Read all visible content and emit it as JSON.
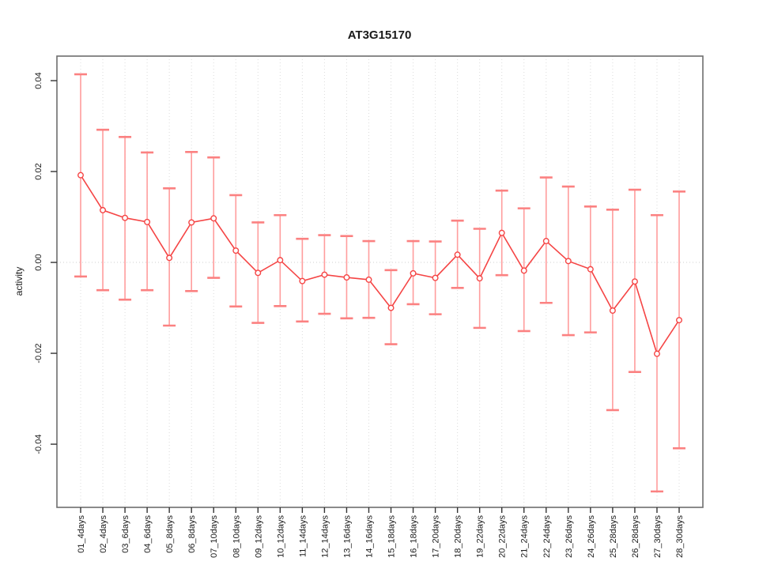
{
  "figure": {
    "title": "AT3G15170",
    "ylabel": "activity"
  },
  "colors": {
    "line": "#f54545",
    "point_stroke": "#f54545",
    "point_fill": "#ffffff",
    "error_bar": "#ff9d9d",
    "error_cap": "#fb8181",
    "grid": "#dcdcdc",
    "zero_line": "#cfcfcf",
    "box": "#6e6e6e",
    "tick": "#333333"
  },
  "chart_data": {
    "type": "line",
    "subtype": "means-with-error-bars",
    "title": "AT3G15170",
    "xlabel": "",
    "ylabel": "activity",
    "legend": "none",
    "grid": "vertical dotted line at every category; horizontal dotted line at y=0 only",
    "marker": "open-circle",
    "categories": [
      "01_4days",
      "02_4days",
      "03_6days",
      "04_6days",
      "05_8days",
      "06_8days",
      "07_10days",
      "08_10days",
      "09_12days",
      "10_12days",
      "11_14days",
      "12_14days",
      "13_16days",
      "14_16days",
      "15_18days",
      "16_18days",
      "17_20days",
      "18_20days",
      "19_22days",
      "20_22days",
      "21_24days",
      "22_24days",
      "23_26days",
      "24_26days",
      "25_28days",
      "26_28days",
      "27_30days",
      "28_30days"
    ],
    "series": [
      {
        "name": "activity",
        "values": [
          0.0192,
          0.0115,
          0.0098,
          0.0089,
          0.001,
          0.0088,
          0.0097,
          0.0026,
          -0.0023,
          0.0005,
          -0.0041,
          -0.0027,
          -0.0033,
          -0.0038,
          -0.01,
          -0.0024,
          -0.0034,
          0.0017,
          -0.0035,
          0.0065,
          -0.0018,
          0.0047,
          0.0003,
          -0.0015,
          -0.0106,
          -0.0042,
          -0.0201,
          -0.0127
        ],
        "error_high": [
          0.0414,
          0.0292,
          0.0276,
          0.0242,
          0.0163,
          0.0243,
          0.0231,
          0.0148,
          0.0088,
          0.0104,
          0.0052,
          0.006,
          0.0058,
          0.0047,
          -0.0017,
          0.0047,
          0.0046,
          0.0092,
          0.0074,
          0.0158,
          0.0119,
          0.0187,
          0.0167,
          0.0123,
          0.0116,
          0.016,
          0.0104,
          0.0156
        ],
        "error_low": [
          -0.0031,
          -0.0061,
          -0.0082,
          -0.0061,
          -0.0139,
          -0.0063,
          -0.0034,
          -0.0097,
          -0.0133,
          -0.0096,
          -0.013,
          -0.0113,
          -0.0123,
          -0.0122,
          -0.018,
          -0.0092,
          -0.0114,
          -0.0056,
          -0.0144,
          -0.0028,
          -0.0151,
          -0.0089,
          -0.016,
          -0.0154,
          -0.0325,
          -0.0241,
          -0.0504,
          -0.0409
        ]
      }
    ],
    "ylim": [
      -0.0539,
      0.0454
    ],
    "yticks": {
      "values": [
        -0.04,
        -0.02,
        0.0,
        0.02,
        0.04
      ],
      "labels": [
        "-0.04",
        "-0.02",
        "0.00",
        "0.02",
        "0.04"
      ]
    }
  }
}
